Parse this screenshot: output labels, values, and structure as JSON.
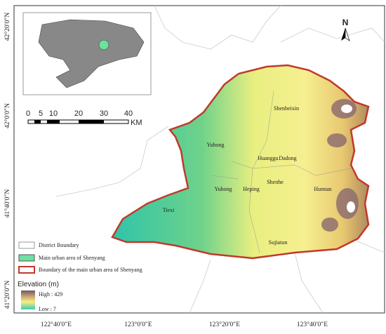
{
  "lon_labels": [
    "122°40′0″E",
    "123°0′0″E",
    "123°20′0″E",
    "123°40′0″E"
  ],
  "lat_labels": [
    "42°20′0″N",
    "42°0′0″N",
    "41°40′0″N",
    "41°20′0″N"
  ],
  "north": "N",
  "scale_bar": {
    "labels": [
      "0",
      "5",
      "10",
      "20",
      "30",
      "40"
    ],
    "unit": "KM"
  },
  "districts": [
    "Shenbeixin",
    "Yuhong",
    "Huanggu",
    "Dadong",
    "Yuhong",
    "Heping",
    "Shenhe",
    "Hunnan",
    "Tiexi",
    "Sujiatun"
  ],
  "legend": [
    "District Boundary",
    "Main urban area of Shenyang",
    "Boundary of the main urban area of Shenyang"
  ],
  "elevation": {
    "title": "Elevation (m)",
    "high": "High : 429",
    "low": "Low : 7"
  }
}
